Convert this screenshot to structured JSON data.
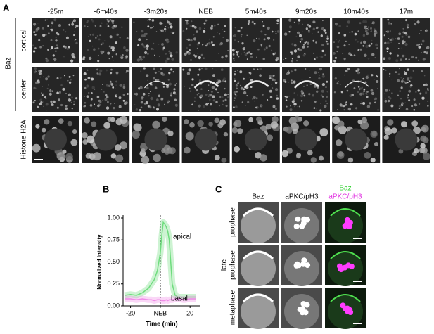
{
  "panel_a": {
    "label": "A",
    "group_label": "Baz",
    "timepoints": [
      "-25m",
      "-6m40s",
      "-3m20s",
      "NEB",
      "5m40s",
      "9m20s",
      "10m40s",
      "17m"
    ],
    "rows": [
      "cortical",
      "center",
      "Histone H2A"
    ]
  },
  "chart_data": {
    "panel_label": "B",
    "type": "line",
    "xlabel": "Time (min)",
    "ylabel": "Normalized Intensity",
    "x": [
      -24,
      -20,
      -16,
      -12,
      -8,
      -6,
      -4,
      -2,
      -1,
      0,
      1,
      2,
      3,
      4,
      5,
      6,
      7,
      8,
      10,
      12,
      16,
      20,
      24
    ],
    "series": [
      {
        "name": "apical",
        "color": "#6fdc7e",
        "values": [
          0.12,
          0.13,
          0.12,
          0.15,
          0.2,
          0.25,
          0.3,
          0.4,
          0.5,
          0.6,
          0.8,
          0.95,
          0.93,
          0.9,
          0.85,
          0.75,
          0.5,
          0.25,
          0.12,
          0.1,
          0.1,
          0.1,
          0.1
        ]
      },
      {
        "name": "basal",
        "color": "#f08ce8",
        "values": [
          0.08,
          0.08,
          0.07,
          0.08,
          0.07,
          0.07,
          0.06,
          0.07,
          0.07,
          0.07,
          0.06,
          0.06,
          0.06,
          0.07,
          0.06,
          0.07,
          0.07,
          0.07,
          0.08,
          0.08,
          0.07,
          0.08,
          0.08
        ]
      }
    ],
    "xlim": [
      -25,
      27
    ],
    "ylim": [
      0,
      1
    ],
    "xticks": [
      -20,
      {
        "value": 0,
        "label": "NEB"
      },
      20
    ],
    "yticks": [
      {
        "value": 0,
        "label": "0.00"
      },
      {
        "value": 0.25,
        "label": "0.25"
      },
      {
        "value": 0.5,
        "label": "0.50"
      },
      {
        "value": 0.75,
        "label": "0.75"
      },
      {
        "value": 1,
        "label": "1.00"
      }
    ]
  },
  "panel_c": {
    "label": "C",
    "columns": [
      "Baz",
      "aPKC/pH3"
    ],
    "merge_header": [
      "Baz",
      "aPKC/pH3"
    ],
    "rows": [
      [
        "prophase"
      ],
      [
        "late",
        "prophase"
      ],
      [
        "metaphase"
      ]
    ]
  }
}
